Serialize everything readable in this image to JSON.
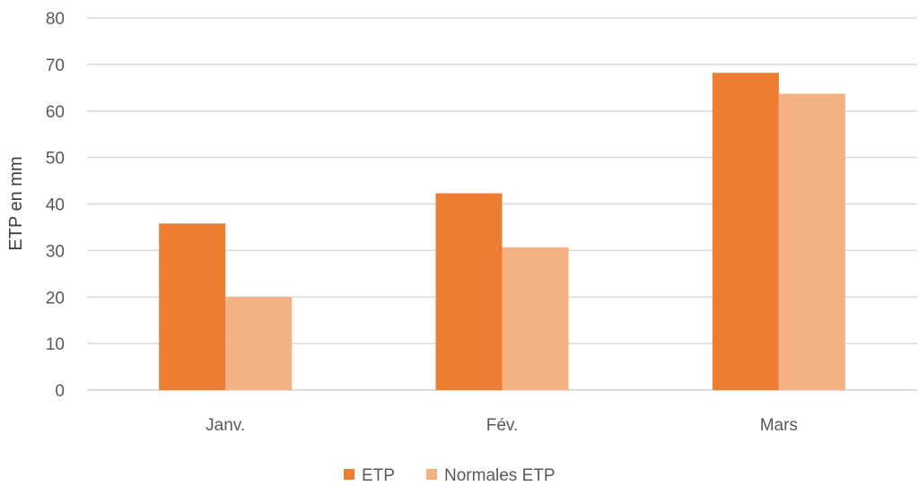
{
  "chart_data": {
    "type": "bar",
    "title": "",
    "xlabel": "",
    "ylabel": "ETP en mm",
    "categories": [
      "Janv.",
      "Fév.",
      "Mars"
    ],
    "series": [
      {
        "name": "ETP",
        "values": [
          35.8,
          42.3,
          68.2
        ],
        "color": "#ed7d31"
      },
      {
        "name": "Normales ETP",
        "values": [
          20.0,
          30.7,
          63.7
        ],
        "color": "#f4b183"
      }
    ],
    "ylim": [
      0,
      80
    ],
    "yticks": [
      0,
      10,
      20,
      30,
      40,
      50,
      60,
      70,
      80
    ],
    "grid": true,
    "legend_position": "bottom"
  }
}
